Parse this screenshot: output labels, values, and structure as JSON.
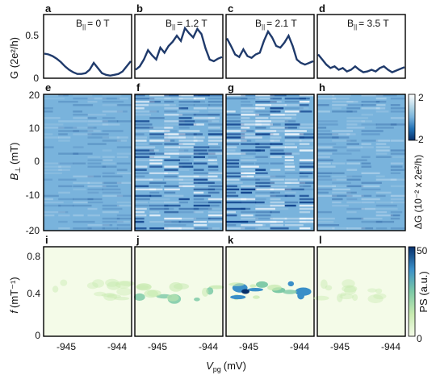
{
  "chart_data": [
    {
      "id": "conductance-traces",
      "type": "line",
      "ylabel": "G (2e²/h)",
      "ylim": [
        0,
        0.75
      ],
      "yticks": [
        "0",
        "0.5"
      ],
      "panels": [
        {
          "letter": "a",
          "field_label": "B",
          "field_sub": "||",
          "field_value": "= 0 T",
          "values": [
            0.29,
            0.28,
            0.26,
            0.23,
            0.19,
            0.14,
            0.1,
            0.07,
            0.05,
            0.05,
            0.06,
            0.1,
            0.18,
            0.12,
            0.06,
            0.04,
            0.03,
            0.04,
            0.05,
            0.08,
            0.14,
            0.2
          ]
        },
        {
          "letter": "b",
          "field_label": "B",
          "field_sub": "||",
          "field_value": "= 1.2 T",
          "values": [
            0.1,
            0.14,
            0.22,
            0.33,
            0.27,
            0.22,
            0.36,
            0.3,
            0.38,
            0.43,
            0.5,
            0.44,
            0.59,
            0.53,
            0.48,
            0.58,
            0.52,
            0.35,
            0.22,
            0.2,
            0.23,
            0.25
          ]
        },
        {
          "letter": "c",
          "field_label": "B",
          "field_sub": "||",
          "field_value": "= 2.1 T",
          "values": [
            0.47,
            0.38,
            0.28,
            0.25,
            0.34,
            0.26,
            0.24,
            0.28,
            0.3,
            0.44,
            0.55,
            0.48,
            0.38,
            0.36,
            0.42,
            0.5,
            0.38,
            0.22,
            0.18,
            0.16,
            0.18,
            0.2
          ]
        },
        {
          "letter": "d",
          "field_label": "B",
          "field_sub": "||",
          "field_value": "= 3.5 T",
          "values": [
            0.28,
            0.22,
            0.16,
            0.12,
            0.14,
            0.1,
            0.12,
            0.08,
            0.1,
            0.14,
            0.1,
            0.07,
            0.08,
            0.1,
            0.08,
            0.12,
            0.14,
            0.1,
            0.07,
            0.09,
            0.11,
            0.13
          ]
        }
      ]
    },
    {
      "id": "delta-g-maps",
      "type": "heatmap",
      "ylabel": "B",
      "ylabel_sub": "⊥",
      "ylabel_unit": "(mT)",
      "ylim": [
        -20,
        20
      ],
      "yticks": [
        "20",
        "10",
        "0",
        "-10",
        "-20"
      ],
      "colorbar": {
        "label": "ΔG (10⁻² x 2e²/h)",
        "max_label": "2",
        "min_label": "-2"
      },
      "panels": [
        {
          "letter": "e",
          "amplitude": 0.25
        },
        {
          "letter": "f",
          "amplitude": 0.9
        },
        {
          "letter": "g",
          "amplitude": 1.0
        },
        {
          "letter": "h",
          "amplitude": 0.35
        }
      ]
    },
    {
      "id": "power-spectra",
      "type": "heatmap",
      "ylabel": "f",
      "ylabel_unit": "(mT⁻¹)",
      "ylim": [
        0,
        0.9
      ],
      "yticks": [
        "0.8",
        "0.4",
        "0"
      ],
      "colorbar": {
        "label": "PS (a.u.)",
        "max_label": "50",
        "min_label": "0"
      },
      "xlabel": "V",
      "xlabel_sub": "pg",
      "xlabel_unit": "(mV)",
      "xticks": [
        "-945",
        "-944"
      ],
      "panels": [
        {
          "letter": "i",
          "amplitude": 0.15
        },
        {
          "letter": "j",
          "amplitude": 0.55
        },
        {
          "letter": "k",
          "amplitude": 1.0
        },
        {
          "letter": "l",
          "amplitude": 0.12
        }
      ]
    }
  ],
  "colors": {
    "trace": "#1f3a6b",
    "diverging": [
      "#08306b",
      "#2171b5",
      "#9ecae1",
      "#eef5fb",
      "#ffffff"
    ],
    "spectrum": [
      "#f4fbe8",
      "#c7eab0",
      "#7cc9a6",
      "#3a8fc8",
      "#08306b"
    ]
  }
}
